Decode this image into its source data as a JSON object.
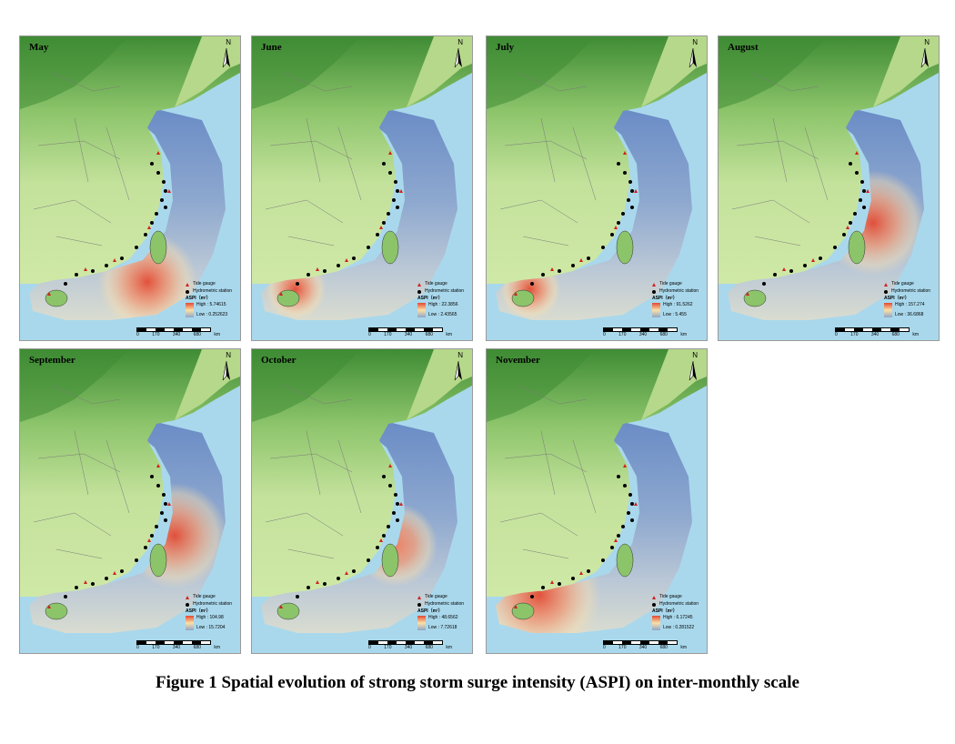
{
  "caption": "Figure 1 Spatial evolution of strong storm surge intensity (ASPI) on inter-monthly scale",
  "legend_labels": {
    "tide": "Tide gauge",
    "hydro": "Hydrometric station",
    "aspi": "ASPI（m²）"
  },
  "scale_ticks": [
    "0",
    "170",
    "340",
    "680"
  ],
  "scale_unit": "km",
  "north_label": "N",
  "colors": {
    "sea": "#a9d8ec",
    "high": "#e44a33",
    "mid": "#fbe0a8",
    "low": "#5a7fbf",
    "land": "#c7e49b",
    "mountain": "#4f9b3c"
  },
  "panels": [
    {
      "month": "May",
      "high": "High : 5.74615",
      "low": "Low : 0.252623",
      "hotspot": "south"
    },
    {
      "month": "June",
      "high": "High : 22.3856",
      "low": "Low : 2.43565",
      "hotspot": "hainan"
    },
    {
      "month": "July",
      "high": "High : 91.5262",
      "low": "Low : 5.455",
      "hotspot": "hainan"
    },
    {
      "month": "August",
      "high": "High : 157.274",
      "low": "Low : 36.6868",
      "hotspot": "taiwan"
    },
    {
      "month": "September",
      "high": "High : 104.98",
      "low": "Low : 15.7204",
      "hotspot": "taiwan"
    },
    {
      "month": "October",
      "high": "High : 48.6562",
      "low": "Low : 7.72618",
      "hotspot": "taiwan-weak"
    },
    {
      "month": "November",
      "high": "High : 6.17245",
      "low": "Low : 0.281522",
      "hotspot": "hainan-strong"
    }
  ]
}
